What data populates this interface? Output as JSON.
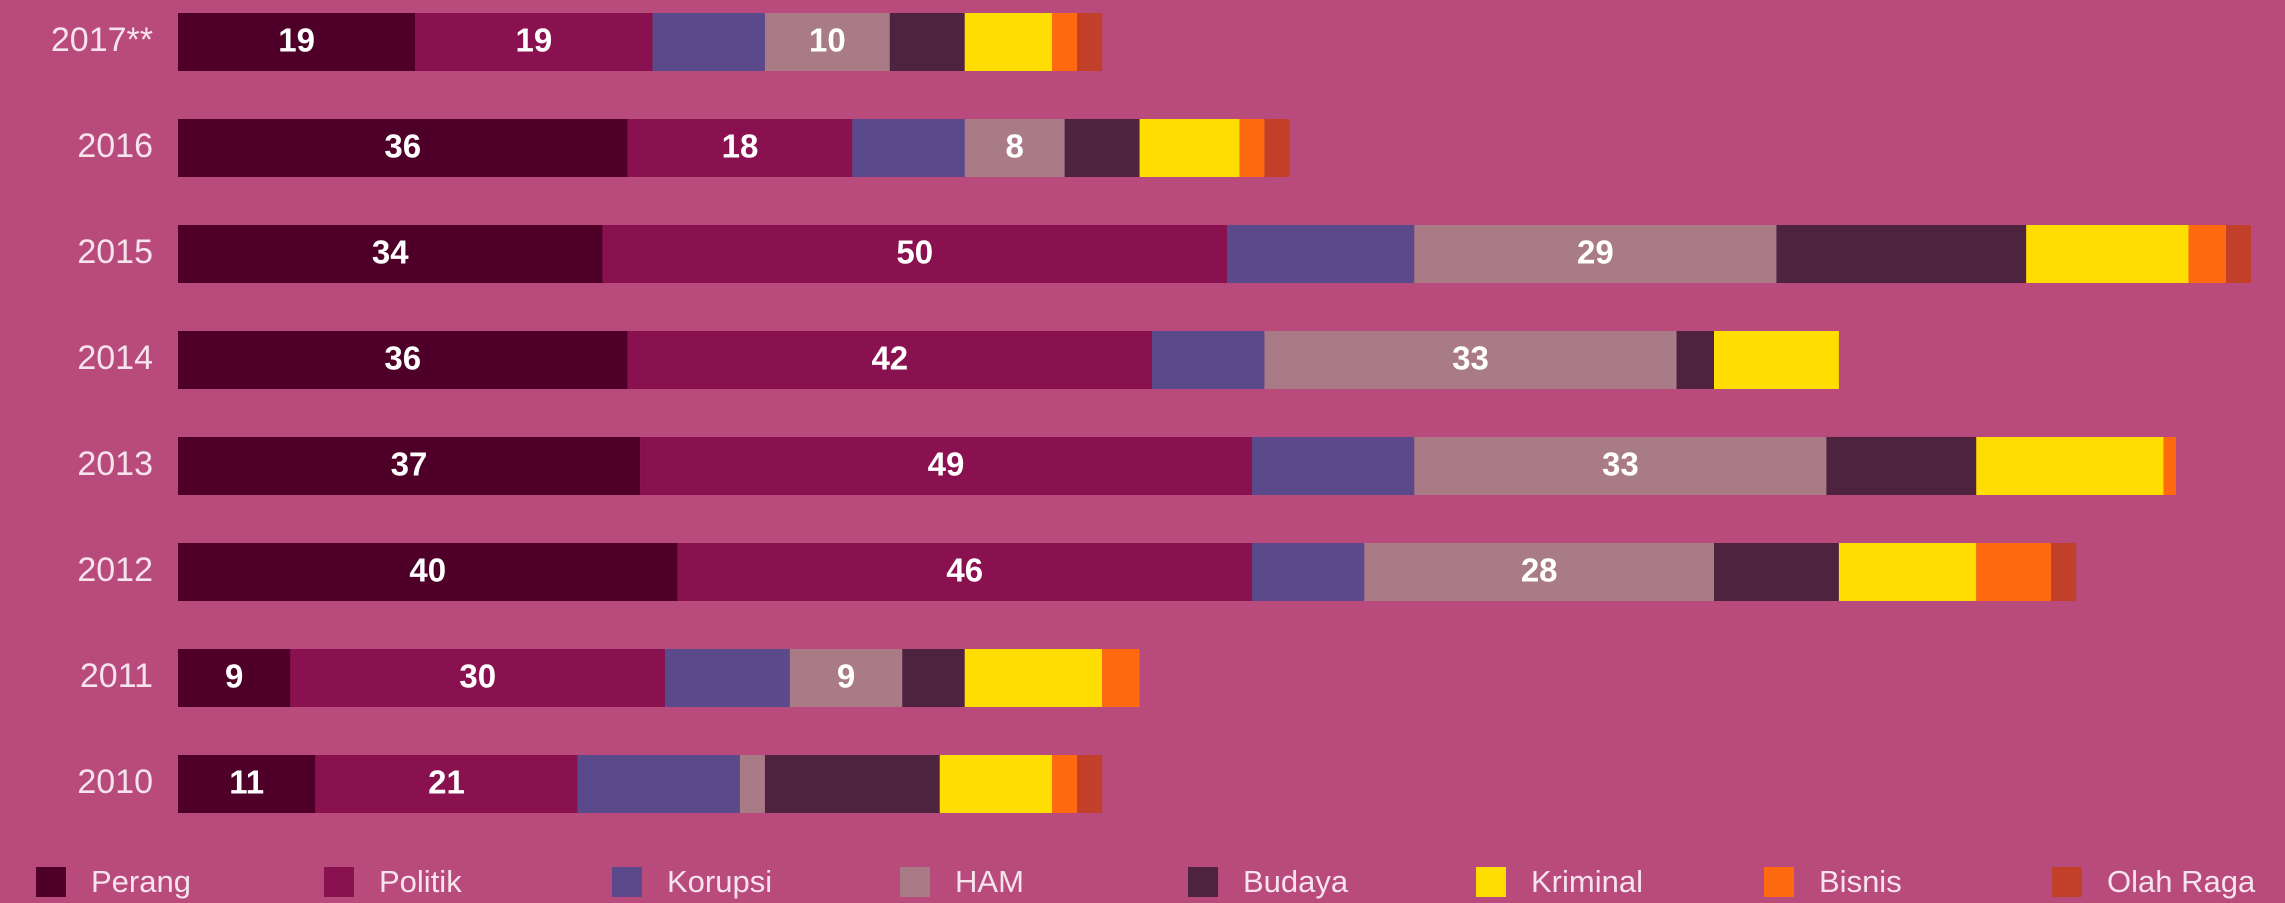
{
  "chart_data": {
    "type": "stacked-bar-horizontal",
    "categories": [
      "2017**",
      "2016",
      "2015",
      "2014",
      "2013",
      "2012",
      "2011",
      "2010"
    ],
    "series": [
      {
        "name": "Perang",
        "color": "#4f0028",
        "values": [
          19,
          36,
          34,
          36,
          37,
          40,
          9,
          11
        ],
        "value_labels": [
          "19",
          "36",
          "34",
          "36",
          "37",
          "40",
          "9",
          "11"
        ]
      },
      {
        "name": "Politik",
        "color": "#8a1150",
        "values": [
          19,
          18,
          50,
          42,
          49,
          46,
          30,
          21
        ],
        "value_labels": [
          "19",
          "18",
          "50",
          "42",
          "49",
          "46",
          "30",
          "21"
        ]
      },
      {
        "name": "Korupsi",
        "color": "#5a4a8c",
        "values": [
          9,
          9,
          15,
          9,
          13,
          9,
          10,
          13
        ]
      },
      {
        "name": "HAM",
        "color": "#a97b86",
        "values": [
          10,
          8,
          29,
          33,
          33,
          28,
          9,
          2
        ],
        "value_labels": [
          "10",
          "8",
          "29",
          "33",
          "33",
          "28",
          "9",
          null
        ]
      },
      {
        "name": "Budaya",
        "color": "#4d2340",
        "values": [
          6,
          6,
          20,
          3,
          12,
          10,
          5,
          14
        ]
      },
      {
        "name": "Kriminal",
        "color": "#ffdd00",
        "values": [
          7,
          8,
          13,
          10,
          15,
          11,
          11,
          9
        ]
      },
      {
        "name": "Bisnis",
        "color": "#ff6a10",
        "values": [
          2,
          2,
          3,
          0,
          1,
          6,
          3,
          2
        ]
      },
      {
        "name": "Olah Raga",
        "color": "#c2402a",
        "values": [
          2,
          2,
          2,
          0,
          0,
          2,
          0,
          2
        ]
      }
    ]
  }
}
